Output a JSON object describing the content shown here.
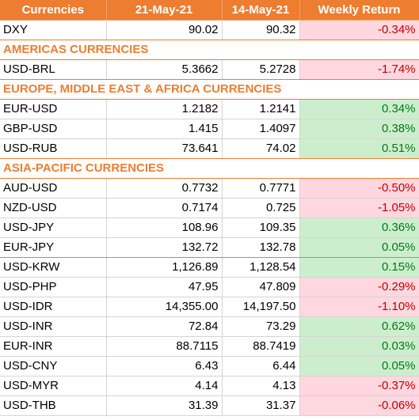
{
  "header": {
    "currencies": "Currencies",
    "date1": "21-May-21",
    "date2": "14-May-21",
    "weekly_return": "Weekly Return"
  },
  "dxy": {
    "name": "DXY",
    "v1": "90.02",
    "v2": "90.32",
    "ret": "-0.34%"
  },
  "sections": {
    "americas": "AMERICAS CURRENCIES",
    "emea": "EUROPE, MIDDLE EAST & AFRICA CURRENCIES",
    "apac": "ASIA-PACIFIC CURRENCIES"
  },
  "rows": {
    "usd_brl": {
      "name": "USD-BRL",
      "v1": "5.3662",
      "v2": "5.2728",
      "ret": "-1.74%"
    },
    "eur_usd": {
      "name": "EUR-USD",
      "v1": "1.2182",
      "v2": "1.2141",
      "ret": "0.34%"
    },
    "gbp_usd": {
      "name": "GBP-USD",
      "v1": "1.415",
      "v2": "1.4097",
      "ret": "0.38%"
    },
    "usd_rub": {
      "name": "USD-RUB",
      "v1": "73.641",
      "v2": "74.02",
      "ret": "0.51%"
    },
    "aud_usd": {
      "name": "AUD-USD",
      "v1": "0.7732",
      "v2": "0.7771",
      "ret": "-0.50%"
    },
    "nzd_usd": {
      "name": "NZD-USD",
      "v1": "0.7174",
      "v2": "0.725",
      "ret": "-1.05%"
    },
    "usd_jpy": {
      "name": "USD-JPY",
      "v1": "108.96",
      "v2": "109.35",
      "ret": "0.36%"
    },
    "eur_jpy": {
      "name": "EUR-JPY",
      "v1": "132.72",
      "v2": "132.78",
      "ret": "0.05%"
    },
    "usd_krw": {
      "name": "USD-KRW",
      "v1": "1,126.89",
      "v2": "1,128.54",
      "ret": "0.15%"
    },
    "usd_php": {
      "name": "USD-PHP",
      "v1": "47.95",
      "v2": "47.809",
      "ret": "-0.29%"
    },
    "usd_idr": {
      "name": "USD-IDR",
      "v1": "14,355.00",
      "v2": "14,197.50",
      "ret": "-1.10%"
    },
    "usd_inr": {
      "name": "USD-INR",
      "v1": "72.84",
      "v2": "73.29",
      "ret": "0.62%"
    },
    "eur_inr": {
      "name": "EUR-INR",
      "v1": "88.7115",
      "v2": "88.7419",
      "ret": "0.03%"
    },
    "usd_cny": {
      "name": "USD-CNY",
      "v1": "6.43",
      "v2": "6.44",
      "ret": "0.05%"
    },
    "usd_myr": {
      "name": "USD-MYR",
      "v1": "4.14",
      "v2": "4.13",
      "ret": "-0.37%"
    },
    "usd_thb": {
      "name": "USD-THB",
      "v1": "31.39",
      "v2": "31.37",
      "ret": "-0.06%"
    }
  }
}
